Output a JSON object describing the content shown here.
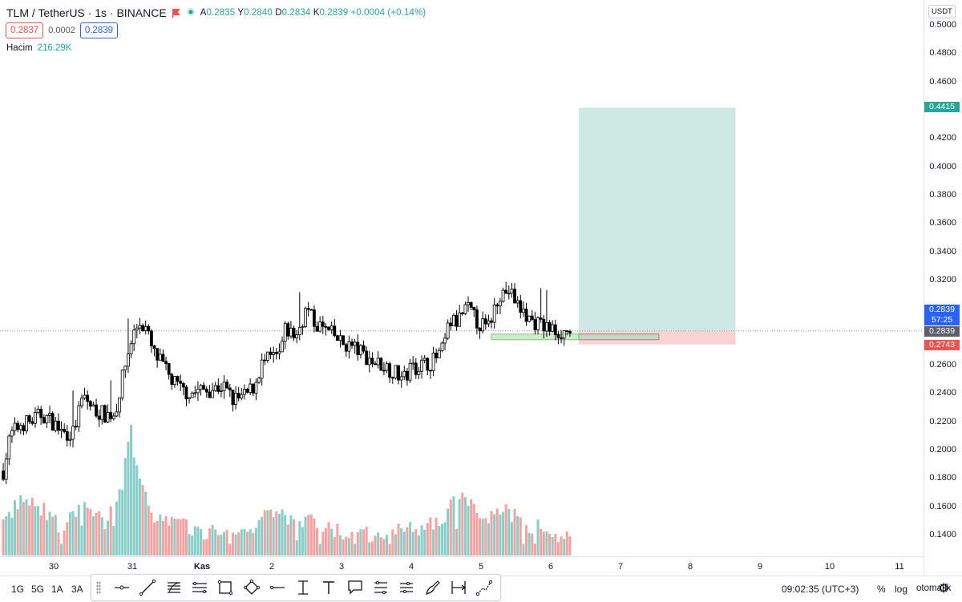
{
  "header": {
    "symbol_title": "TLM / TetherUS · 1s · BINANCE",
    "ohlc": {
      "open_label": "A",
      "open": "0.2835",
      "high_label": "Y",
      "high": "0.2840",
      "low_label": "D",
      "low": "0.2834",
      "close_label": "K",
      "close": "0.2839",
      "change": "+0.0004 (+0.14%)"
    },
    "sell_price": "0.2837",
    "spread": "0.0002",
    "buy_price": "0.2839",
    "volume_label": "Hacim",
    "volume_value": "216.29K"
  },
  "price_axis": {
    "currency": "USDT",
    "labels": [
      "0.5000",
      "0.4800",
      "0.4600",
      "0.4200",
      "0.4000",
      "0.3800",
      "0.3600",
      "0.3400",
      "0.3200",
      "0.2600",
      "0.2400",
      "0.2200",
      "0.2000",
      "0.1800",
      "0.1600",
      "0.1400"
    ],
    "target_tag": "0.4415",
    "last_price_tag": "0.2839",
    "countdown": "57:25",
    "entry_tag": "0.2839",
    "stop_tag": "0.2743"
  },
  "time_axis": {
    "labels": [
      "30",
      "31",
      "Kas",
      "2",
      "3",
      "4",
      "5",
      "6",
      "7",
      "8",
      "9",
      "10",
      "11"
    ]
  },
  "bottom_bar": {
    "ranges": [
      "1G",
      "5G",
      "1A",
      "3A"
    ],
    "clock": "09:02:35 (UTC+3)",
    "percent": "%",
    "log": "log",
    "auto": "otomatik"
  },
  "toolbar_icons": [
    "horizontal-ray-icon",
    "trend-line-icon",
    "fib-retracement-icon",
    "parallel-channel-icon",
    "rectangle-icon",
    "path-icon",
    "horizontal-line-icon",
    "text-cursor-icon",
    "text-icon",
    "callout-icon",
    "pitchfork-icon",
    "gann-icon",
    "brush-icon",
    "date-range-icon",
    "forecast-icon"
  ],
  "colors": {
    "up": "#26a69a",
    "down": "#ef5350",
    "candle": "#000000",
    "profit_zone": "#cfe9e5",
    "loss_zone": "#f9d3d2",
    "accent": "#2962ff"
  },
  "chart_data": {
    "type": "candlestick",
    "ylim": [
      0.13,
      0.51
    ],
    "position": {
      "entry": 0.2839,
      "target": 0.4415,
      "stop": 0.2743,
      "start_day": 6.4,
      "end_day": 8.65
    },
    "day_ticks": [
      {
        "label": "30",
        "day": -1
      },
      {
        "label": "31",
        "day": 0
      },
      {
        "label": "Kas",
        "day": 1
      },
      {
        "label": "2",
        "day": 2
      },
      {
        "label": "3",
        "day": 3
      },
      {
        "label": "4",
        "day": 4
      },
      {
        "label": "5",
        "day": 5
      },
      {
        "label": "6",
        "day": 6
      },
      {
        "label": "7",
        "day": 7
      },
      {
        "label": "8",
        "day": 8
      },
      {
        "label": "9",
        "day": 9
      },
      {
        "label": "10",
        "day": 10
      },
      {
        "label": "11",
        "day": 11
      }
    ],
    "close_path": [
      [
        -1.85,
        0.185
      ],
      [
        -1.75,
        0.21
      ],
      [
        -1.6,
        0.218
      ],
      [
        -1.45,
        0.22
      ],
      [
        -1.3,
        0.225
      ],
      [
        -1.15,
        0.22
      ],
      [
        -1.0,
        0.212
      ],
      [
        -0.85,
        0.212
      ],
      [
        -0.7,
        0.238
      ],
      [
        -0.55,
        0.228
      ],
      [
        -0.4,
        0.225
      ],
      [
        -0.25,
        0.225
      ],
      [
        -0.1,
        0.26
      ],
      [
        0.0,
        0.28
      ],
      [
        0.1,
        0.29
      ],
      [
        0.2,
        0.285
      ],
      [
        0.3,
        0.268
      ],
      [
        0.4,
        0.262
      ],
      [
        0.55,
        0.25
      ],
      [
        0.7,
        0.242
      ],
      [
        0.85,
        0.24
      ],
      [
        1.0,
        0.242
      ],
      [
        1.15,
        0.243
      ],
      [
        1.3,
        0.245
      ],
      [
        1.45,
        0.235
      ],
      [
        1.6,
        0.237
      ],
      [
        1.75,
        0.245
      ],
      [
        1.85,
        0.26
      ],
      [
        2.0,
        0.265
      ],
      [
        2.1,
        0.265
      ],
      [
        2.2,
        0.285
      ],
      [
        2.35,
        0.28
      ],
      [
        2.5,
        0.3
      ],
      [
        2.6,
        0.29
      ],
      [
        2.75,
        0.285
      ],
      [
        2.9,
        0.28
      ],
      [
        3.0,
        0.275
      ],
      [
        3.15,
        0.273
      ],
      [
        3.3,
        0.268
      ],
      [
        3.45,
        0.262
      ],
      [
        3.6,
        0.26
      ],
      [
        3.75,
        0.255
      ],
      [
        3.9,
        0.25
      ],
      [
        4.0,
        0.258
      ],
      [
        4.15,
        0.26
      ],
      [
        4.3,
        0.262
      ],
      [
        4.45,
        0.27
      ],
      [
        4.55,
        0.29
      ],
      [
        4.65,
        0.29
      ],
      [
        4.8,
        0.3
      ],
      [
        4.95,
        0.29
      ],
      [
        5.1,
        0.285
      ],
      [
        5.25,
        0.31
      ],
      [
        5.4,
        0.312
      ],
      [
        5.55,
        0.3
      ],
      [
        5.7,
        0.292
      ],
      [
        5.85,
        0.288
      ],
      [
        6.0,
        0.285
      ],
      [
        6.15,
        0.283
      ],
      [
        6.3,
        0.2839
      ]
    ],
    "volume_path": [
      [
        -1.85,
        0.148
      ],
      [
        -1.6,
        0.165
      ],
      [
        -1.3,
        0.158
      ],
      [
        -1.0,
        0.145
      ],
      [
        -0.7,
        0.162
      ],
      [
        -0.4,
        0.148
      ],
      [
        -0.15,
        0.175
      ],
      [
        0.0,
        0.222
      ],
      [
        0.1,
        0.175
      ],
      [
        0.3,
        0.155
      ],
      [
        0.6,
        0.148
      ],
      [
        1.0,
        0.142
      ],
      [
        1.4,
        0.139
      ],
      [
        1.7,
        0.145
      ],
      [
        2.0,
        0.155
      ],
      [
        2.3,
        0.152
      ],
      [
        2.6,
        0.148
      ],
      [
        3.0,
        0.142
      ],
      [
        3.4,
        0.14
      ],
      [
        3.8,
        0.142
      ],
      [
        4.2,
        0.145
      ],
      [
        4.5,
        0.155
      ],
      [
        4.75,
        0.172
      ],
      [
        5.0,
        0.148
      ],
      [
        5.3,
        0.16
      ],
      [
        5.6,
        0.148
      ],
      [
        6.0,
        0.142
      ],
      [
        6.3,
        0.135
      ]
    ]
  }
}
